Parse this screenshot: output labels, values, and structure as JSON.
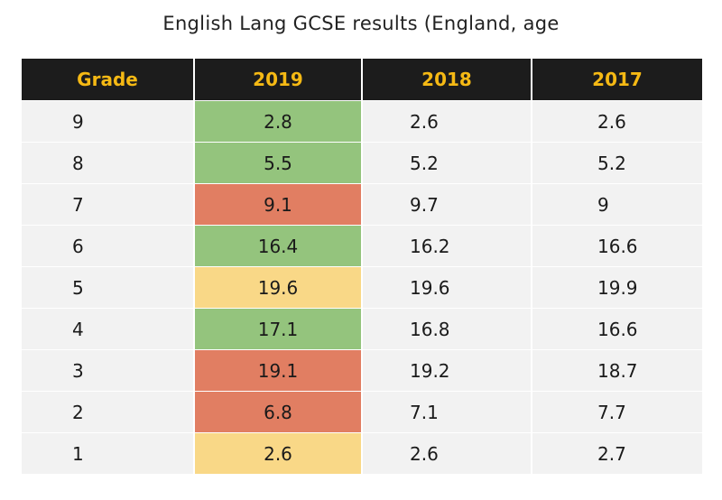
{
  "chart_data": {
    "type": "table",
    "title": "English Lang GCSE results (England, age",
    "columns": [
      "Grade",
      "2019",
      "2018",
      "2017"
    ],
    "rows": [
      {
        "grade": "9",
        "y2019": "2.8",
        "y2018": "2.6",
        "y2017": "2.6",
        "status": "up"
      },
      {
        "grade": "8",
        "y2019": "5.5",
        "y2018": "5.2",
        "y2017": "5.2",
        "status": "up"
      },
      {
        "grade": "7",
        "y2019": "9.1",
        "y2018": "9.7",
        "y2017": "9",
        "status": "down"
      },
      {
        "grade": "6",
        "y2019": "16.4",
        "y2018": "16.2",
        "y2017": "16.6",
        "status": "up"
      },
      {
        "grade": "5",
        "y2019": "19.6",
        "y2018": "19.6",
        "y2017": "19.9",
        "status": "same"
      },
      {
        "grade": "4",
        "y2019": "17.1",
        "y2018": "16.8",
        "y2017": "16.6",
        "status": "up"
      },
      {
        "grade": "3",
        "y2019": "19.1",
        "y2018": "19.2",
        "y2017": "18.7",
        "status": "down"
      },
      {
        "grade": "2",
        "y2019": "6.8",
        "y2018": "7.1",
        "y2017": "7.7",
        "status": "down"
      },
      {
        "grade": "1",
        "y2019": "2.6",
        "y2018": "2.6",
        "y2017": "2.7",
        "status": "same"
      }
    ]
  },
  "colors": {
    "header_bg": "#1c1c1c",
    "header_text": "#f5b914",
    "row_bg": "#f2f2f2",
    "up": "#94c47d",
    "down": "#e17e62",
    "same": "#f9d887"
  }
}
